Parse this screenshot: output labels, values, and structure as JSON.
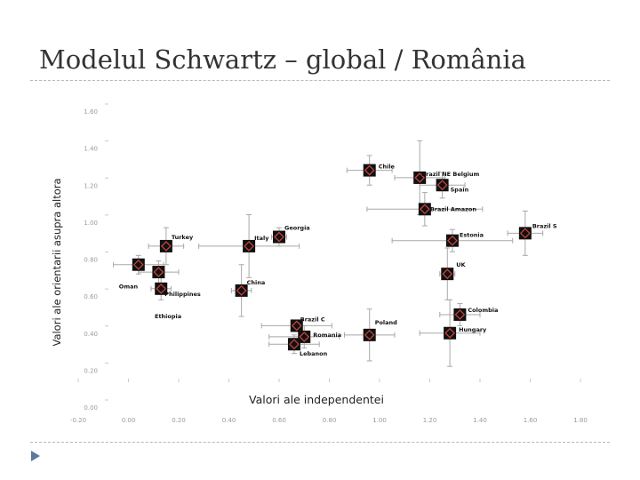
{
  "slide": {
    "title": "Modelul Schwartz – global / România"
  },
  "colors": {
    "marker_fill": "#111111",
    "marker_inner": "#d0463c",
    "error_bar": "#a8a8a8",
    "tick_label": "#9a9a9a",
    "axis_title": "#222222"
  },
  "chart_data": {
    "type": "scatter",
    "xlabel": "Valori ale independentei",
    "ylabel": "Valori ale orientarii asupra altora",
    "xlim": [
      -0.2,
      1.8
    ],
    "ylim": [
      0.0,
      1.6
    ],
    "x_ticks": [
      "-0.20",
      "0.00",
      "0.20",
      "0.40",
      "0.60",
      "0.80",
      "1.00",
      "1.20",
      "1.40",
      "1.60",
      "1.80"
    ],
    "y_ticks": [
      "0.00",
      "0.20",
      "0.40",
      "0.60",
      "0.80",
      "1.00",
      "1.20",
      "1.40",
      "1.60"
    ],
    "points": [
      {
        "label": "Chile",
        "x": 0.96,
        "y": 1.28,
        "xerr": 0.09,
        "yerr": 0.08
      },
      {
        "label": "Brazil NE Belgium",
        "x": 1.16,
        "y": 1.24,
        "xerr": 0.1,
        "yerr": 0.2
      },
      {
        "label": "Spain",
        "x": 1.25,
        "y": 1.2,
        "xerr": 0.09,
        "yerr": 0.07
      },
      {
        "label": "Brazil Amazon",
        "x": 1.18,
        "y": 1.07,
        "xerr": 0.23,
        "yerr": 0.09
      },
      {
        "label": "Brazil S",
        "x": 1.58,
        "y": 0.94,
        "xerr": 0.07,
        "yerr": 0.12
      },
      {
        "label": "Estonia",
        "x": 1.29,
        "y": 0.9,
        "xerr": 0.24,
        "yerr": 0.06
      },
      {
        "label": "Georgia",
        "x": 0.6,
        "y": 0.92,
        "xerr": 0.03,
        "yerr": 0.05
      },
      {
        "label": "Turkey",
        "x": 0.15,
        "y": 0.87,
        "xerr": 0.07,
        "yerr": 0.1
      },
      {
        "label": "Italy",
        "x": 0.48,
        "y": 0.87,
        "xerr": 0.2,
        "yerr": 0.17
      },
      {
        "label": "Oman",
        "x": 0.04,
        "y": 0.77,
        "xerr": 0.1,
        "yerr": 0.05
      },
      {
        "label": "",
        "x": 0.12,
        "y": 0.73,
        "xerr": 0.08,
        "yerr": 0.06
      },
      {
        "label": "UK",
        "x": 1.27,
        "y": 0.72,
        "xerr": 0.03,
        "yerr": 0.14
      },
      {
        "label": "Philippines",
        "x": 0.13,
        "y": 0.64,
        "xerr": 0.04,
        "yerr": 0.06
      },
      {
        "label": "China",
        "x": 0.45,
        "y": 0.63,
        "xerr": 0.04,
        "yerr": 0.14
      },
      {
        "label": "Colombia",
        "x": 1.32,
        "y": 0.5,
        "xerr": 0.08,
        "yerr": 0.06
      },
      {
        "label": "Brazil C",
        "x": 0.67,
        "y": 0.44,
        "xerr": 0.14,
        "yerr": 0.03
      },
      {
        "label": "Romania",
        "x": 0.7,
        "y": 0.38,
        "xerr": 0.14,
        "yerr": 0.06
      },
      {
        "label": "Poland",
        "x": 0.96,
        "y": 0.39,
        "xerr": 0.1,
        "yerr": 0.14
      },
      {
        "label": "Hungary",
        "x": 1.28,
        "y": 0.4,
        "xerr": 0.12,
        "yerr": 0.18
      },
      {
        "label": "Lebanon",
        "x": 0.66,
        "y": 0.34,
        "xerr": 0.1,
        "yerr": 0.05
      }
    ],
    "extra_labels": [
      "Ethiopia"
    ]
  }
}
